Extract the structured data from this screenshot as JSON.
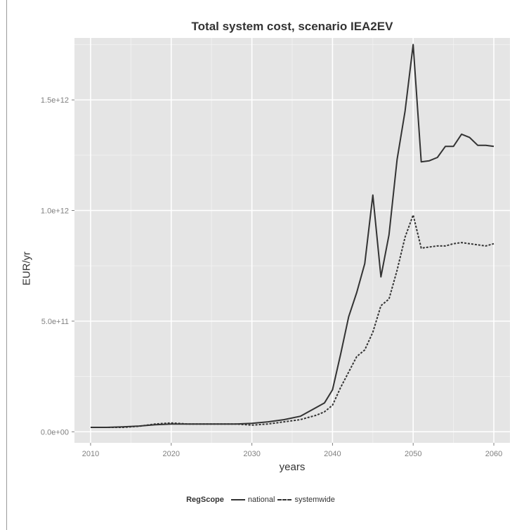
{
  "chart_data": {
    "type": "line",
    "title": "Total system cost, scenario IEA2EV",
    "xlabel": "years",
    "ylabel": "EUR/yr",
    "xlim": [
      2008,
      2062
    ],
    "ylim": [
      -50000000000.0,
      1780000000000.0
    ],
    "xticks": [
      2010,
      2020,
      2030,
      2040,
      2050,
      2060
    ],
    "xtick_labels": [
      "2010",
      "2020",
      "2030",
      "2040",
      "2050",
      "2060"
    ],
    "yticks": [
      0,
      500000000000.0,
      1000000000000.0,
      1500000000000.0
    ],
    "ytick_labels": [
      "0.0e+00",
      "5.0e+11",
      "1.0e+12",
      "1.5e+12"
    ],
    "grid": true,
    "background": "#e5e5e5",
    "legend": {
      "title": "RegScope",
      "position": "bottom"
    },
    "series": [
      {
        "name": "national",
        "style": "solid",
        "color": "#333333",
        "x": [
          2010,
          2012,
          2014,
          2016,
          2018,
          2020,
          2022,
          2024,
          2026,
          2028,
          2030,
          2032,
          2034,
          2036,
          2038,
          2039,
          2040,
          2041,
          2042,
          2043,
          2044,
          2045,
          2046,
          2047,
          2048,
          2049,
          2050,
          2051,
          2052,
          2053,
          2054,
          2055,
          2056,
          2057,
          2058,
          2059,
          2060
        ],
        "values": [
          20000000000.0,
          20000000000.0,
          22000000000.0,
          26000000000.0,
          32000000000.0,
          35000000000.0,
          35000000000.0,
          35000000000.0,
          35000000000.0,
          35000000000.0,
          38000000000.0,
          45000000000.0,
          55000000000.0,
          70000000000.0,
          110000000000.0,
          130000000000.0,
          190000000000.0,
          350000000000.0,
          520000000000.0,
          630000000000.0,
          760000000000.0,
          1070000000000.0,
          700000000000.0,
          890000000000.0,
          1230000000000.0,
          1450000000000.0,
          1750000000000.0,
          1220000000000.0,
          1225000000000.0,
          1240000000000.0,
          1290000000000.0,
          1290000000000.0,
          1345000000000.0,
          1330000000000.0,
          1295000000000.0,
          1295000000000.0,
          1290000000000.0
        ]
      },
      {
        "name": "systemwide",
        "style": "dashed",
        "color": "#333333",
        "x": [
          2010,
          2012,
          2014,
          2016,
          2018,
          2020,
          2022,
          2024,
          2026,
          2028,
          2030,
          2032,
          2034,
          2036,
          2038,
          2039,
          2040,
          2041,
          2042,
          2043,
          2044,
          2045,
          2046,
          2047,
          2048,
          2049,
          2050,
          2051,
          2052,
          2053,
          2054,
          2055,
          2056,
          2057,
          2058,
          2059,
          2060
        ],
        "values": [
          20000000000.0,
          20000000000.0,
          20000000000.0,
          25000000000.0,
          35000000000.0,
          40000000000.0,
          35000000000.0,
          35000000000.0,
          35000000000.0,
          35000000000.0,
          30000000000.0,
          35000000000.0,
          45000000000.0,
          55000000000.0,
          75000000000.0,
          90000000000.0,
          120000000000.0,
          200000000000.0,
          270000000000.0,
          340000000000.0,
          370000000000.0,
          450000000000.0,
          570000000000.0,
          600000000000.0,
          730000000000.0,
          880000000000.0,
          980000000000.0,
          830000000000.0,
          835000000000.0,
          840000000000.0,
          840000000000.0,
          850000000000.0,
          855000000000.0,
          850000000000.0,
          845000000000.0,
          840000000000.0,
          850000000000.0
        ]
      }
    ]
  }
}
